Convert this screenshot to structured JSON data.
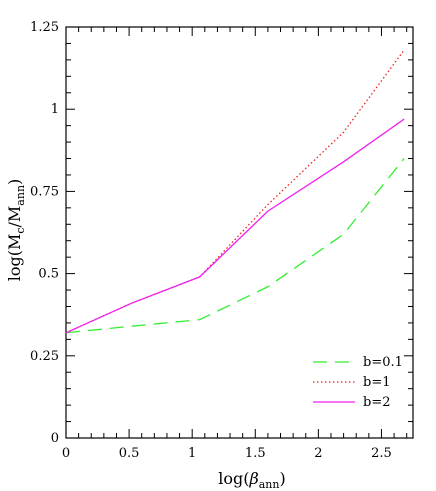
{
  "chart_data": {
    "type": "line",
    "title": "",
    "xlabel": {
      "main": "log(",
      "greek": "β",
      "sub": "ann",
      "close": ")"
    },
    "ylabel": {
      "main": "log(M",
      "sub1": "c",
      "mid": "/M",
      "sub2": "ann",
      "close": ")"
    },
    "xlim": [
      0,
      2.75
    ],
    "ylim": [
      0,
      1.25
    ],
    "x_ticks": [
      {
        "value": 0,
        "label": "0"
      },
      {
        "value": 0.5,
        "label": "0.5"
      },
      {
        "value": 1,
        "label": "1"
      },
      {
        "value": 1.5,
        "label": "1.5"
      },
      {
        "value": 2,
        "label": "2"
      },
      {
        "value": 2.5,
        "label": "2.5"
      }
    ],
    "y_ticks": [
      {
        "value": 0,
        "label": "0"
      },
      {
        "value": 0.25,
        "label": "0.25"
      },
      {
        "value": 0.5,
        "label": "0.5"
      },
      {
        "value": 0.75,
        "label": "0.75"
      },
      {
        "value": 1,
        "label": "1"
      },
      {
        "value": 1.25,
        "label": "1.25"
      }
    ],
    "grid": false,
    "legend_position": "bottom-right",
    "series": [
      {
        "name": "b=0.1",
        "color": "#33ee33",
        "style": "dashed",
        "x": [
          0,
          0.52,
          1.06,
          1.6,
          2.2,
          2.68
        ],
        "y": [
          0.32,
          0.34,
          0.36,
          0.46,
          0.62,
          0.85
        ]
      },
      {
        "name": "b=1",
        "color": "#ee2222",
        "style": "dotted",
        "x": [
          0,
          0.52,
          1.06,
          1.6,
          2.2,
          2.68
        ],
        "y": [
          0.32,
          0.41,
          0.49,
          0.71,
          0.93,
          1.18
        ]
      },
      {
        "name": "b=2",
        "color": "#ee22ee",
        "style": "solid",
        "x": [
          0,
          0.52,
          1.06,
          1.6,
          2.2,
          2.68
        ],
        "y": [
          0.32,
          0.41,
          0.49,
          0.69,
          0.84,
          0.97
        ]
      }
    ]
  }
}
